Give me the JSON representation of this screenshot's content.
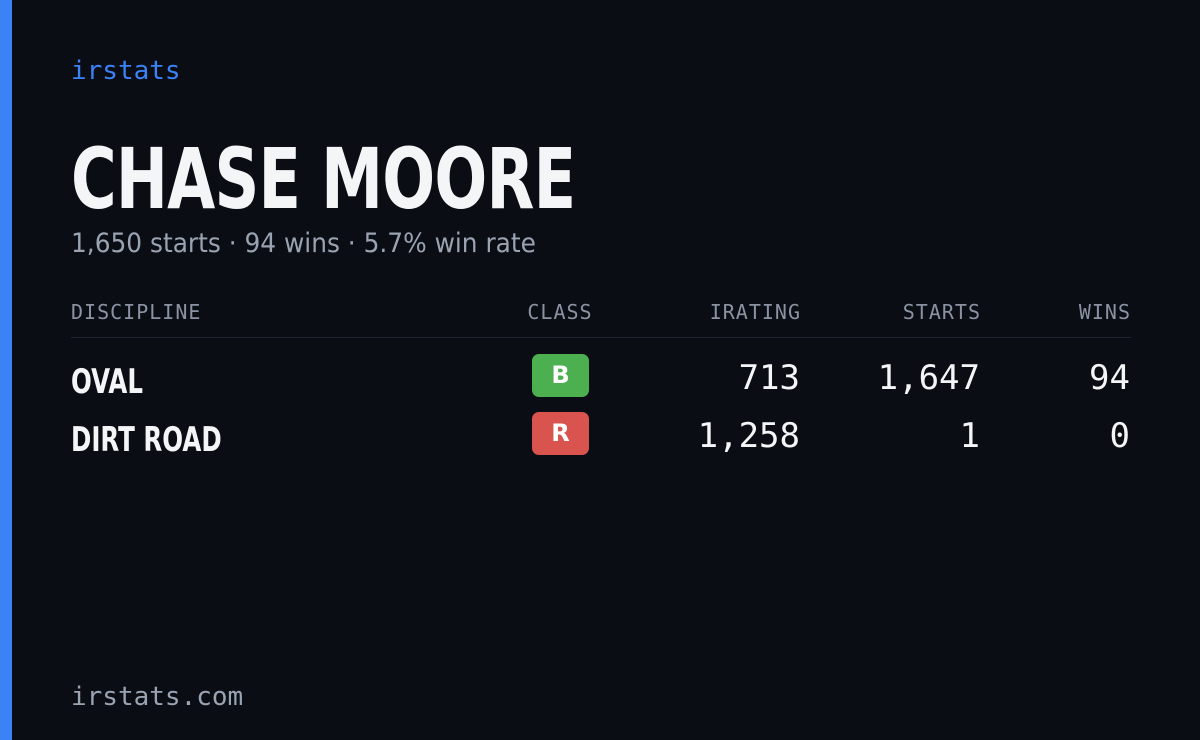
{
  "brand": "irstats",
  "name": "CHASE MOORE",
  "summary": "1,650 starts · 94 wins · 5.7% win rate",
  "table": {
    "headers": [
      "DISCIPLINE",
      "CLASS",
      "IRATING",
      "STARTS",
      "WINS"
    ],
    "rows": [
      [
        "OVAL",
        "B",
        "713",
        "1,647",
        "94"
      ],
      [
        "DIRT ROAD",
        "R",
        "1,258",
        "1",
        "0"
      ]
    ]
  },
  "footer": "irstats.com"
}
